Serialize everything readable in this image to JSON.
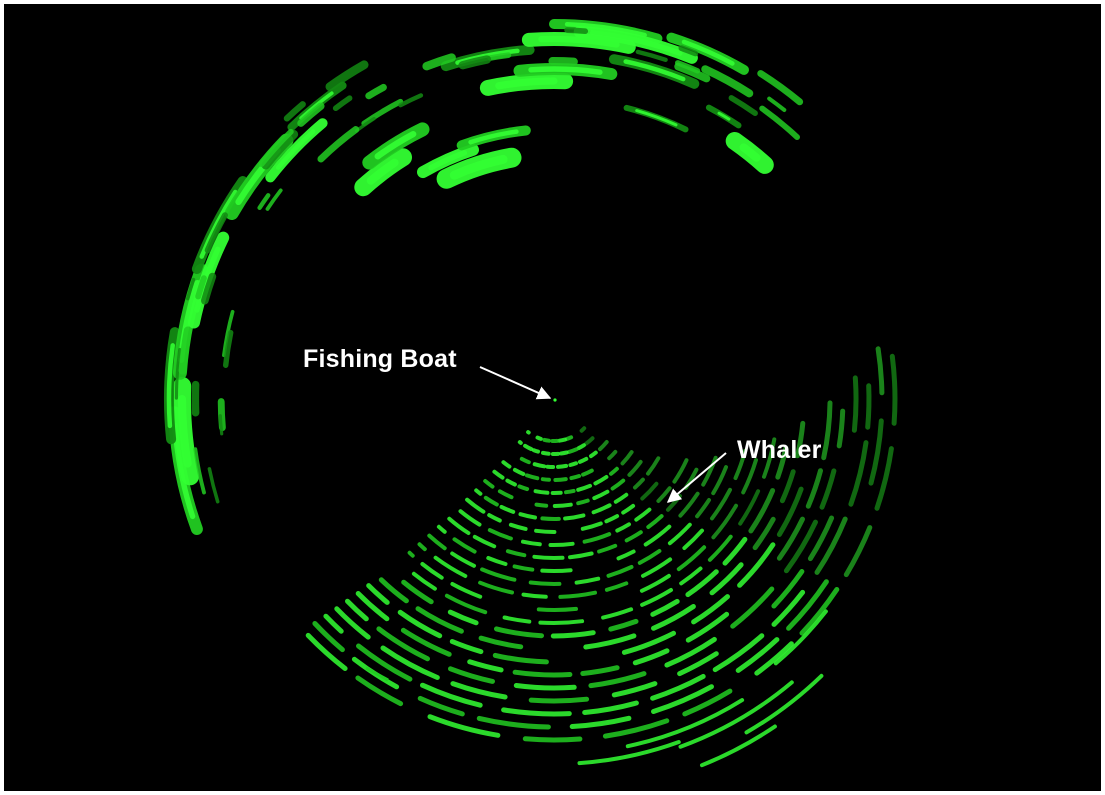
{
  "annotations": {
    "fishing_boat_label": "Fishing Boat",
    "whaler_label": "Whaler"
  },
  "colors": {
    "background": "#000000",
    "echo_bright": "#33ff33",
    "echo_mid": "#22cc22",
    "echo_dark": "#138a13",
    "label_text": "#ffffff"
  }
}
